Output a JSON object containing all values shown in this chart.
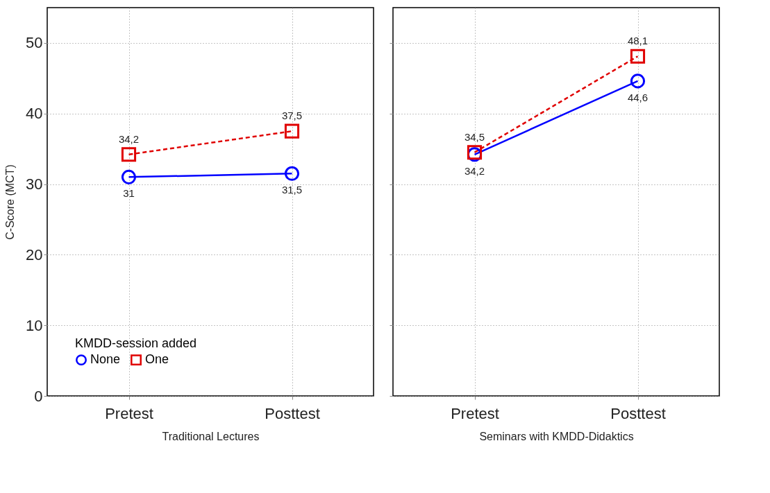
{
  "chart_data": [
    {
      "type": "line",
      "xlabel": "Traditional Lectures",
      "ylabel": "C-Score (MCT)",
      "legend_title": "KMDD-session added",
      "categories": [
        "Pretest",
        "Posttest"
      ],
      "ylim": [
        0,
        55
      ],
      "yticks": [
        0,
        10,
        20,
        30,
        40,
        50
      ],
      "grid": true,
      "legend": "bottom",
      "series": [
        {
          "name": "None",
          "color": "#0000ff",
          "values": [
            31,
            31.5
          ],
          "value_labels": [
            "31",
            "31,5"
          ],
          "marker": "circle",
          "line_style": "solid"
        },
        {
          "name": "One",
          "color": "#e00000",
          "values": [
            34.2,
            37.5
          ],
          "value_labels": [
            "34,2",
            "37,5"
          ],
          "marker": "square",
          "line_style": "dashed"
        }
      ]
    },
    {
      "type": "line",
      "xlabel": "Seminars with KMDD-Didaktics",
      "categories": [
        "Pretest",
        "Posttest"
      ],
      "ylim": [
        0,
        55
      ],
      "yticks": [
        0,
        10,
        20,
        30,
        40,
        50
      ],
      "grid": true,
      "tick_labels": "x",
      "series": [
        {
          "color": "#0000ff",
          "values": [
            34.2,
            44.6
          ],
          "value_labels": [
            "34,2",
            "44,6"
          ],
          "marker": "circle",
          "line_style": "solid"
        },
        {
          "color": "#e00000",
          "values": [
            34.5,
            48.1
          ],
          "value_labels": [
            "34,5",
            "48,1"
          ],
          "marker": "square",
          "line_style": "dashed"
        }
      ]
    }
  ]
}
